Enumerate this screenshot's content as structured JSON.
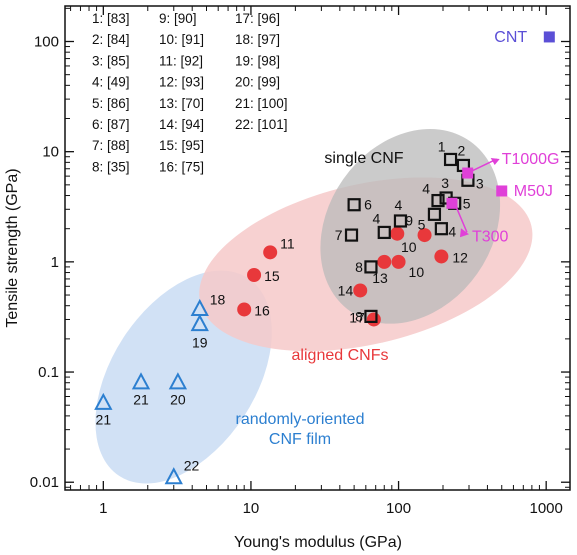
{
  "chart_data": {
    "type": "scatter",
    "title": "",
    "xlabel": "Young's modulus (GPa)",
    "ylabel": "Tensile strength (GPa)",
    "xscale": "log",
    "yscale": "log",
    "xlim": [
      0.55,
      1450
    ],
    "ylim": [
      0.0085,
      210
    ],
    "x_ticks": [
      {
        "value": 1,
        "label": "1"
      },
      {
        "value": 10,
        "label": "10"
      },
      {
        "value": 100,
        "label": "100"
      },
      {
        "value": 1000,
        "label": "1000"
      }
    ],
    "y_ticks": [
      {
        "value": 0.01,
        "label": "0.01"
      },
      {
        "value": 0.1,
        "label": "0.1"
      },
      {
        "value": 1,
        "label": "1"
      },
      {
        "value": 10,
        "label": "10"
      },
      {
        "value": 100,
        "label": "100"
      }
    ],
    "regions": [
      {
        "label": "randomly-oriented\nCNF film",
        "color": "#c9dcf3",
        "text_color": "#2c7fd0"
      },
      {
        "label": "aligned CNFs",
        "color": "#f6c9c9",
        "text_color": "#e8383b"
      },
      {
        "label": "single CNF",
        "color": "#b9b9b9",
        "text_color": "#111111"
      }
    ],
    "references": [
      "1: [83]",
      "2: [84]",
      "3: [85]",
      "4: [49]",
      "5: [86]",
      "6: [87]",
      "7: [88]",
      "8: [35]",
      "9: [90]",
      "10: [91]",
      "11: [92]",
      "12: [93]",
      "13: [70]",
      "14: [94]",
      "15: [95]",
      "16: [75]",
      "17: [96]",
      "18: [97]",
      "19: [98]",
      "20: [99]",
      "21: [100]",
      "22: [101]"
    ],
    "series": [
      {
        "marker": "triangle-open",
        "color": "#2c7fd0",
        "points": [
          {
            "x": 1.0,
            "y": 0.052,
            "label": "21"
          },
          {
            "x": 1.8,
            "y": 0.08,
            "label": "21"
          },
          {
            "x": 3.2,
            "y": 0.08,
            "label": "20"
          },
          {
            "x": 3.0,
            "y": 0.011,
            "label": "22"
          },
          {
            "x": 4.5,
            "y": 0.37,
            "label": "18"
          },
          {
            "x": 4.5,
            "y": 0.27,
            "label": "19"
          }
        ]
      },
      {
        "marker": "circle-filled",
        "color": "#e8383b",
        "points": [
          {
            "x": 9.0,
            "y": 0.37,
            "label": "16"
          },
          {
            "x": 10.5,
            "y": 0.76,
            "label": "15"
          },
          {
            "x": 13.5,
            "y": 1.22,
            "label": "11"
          },
          {
            "x": 55,
            "y": 0.55,
            "label": "14"
          },
          {
            "x": 68,
            "y": 0.3,
            "label": "17"
          },
          {
            "x": 80,
            "y": 1.0,
            "label": "13"
          },
          {
            "x": 100,
            "y": 1.0,
            "label": "10"
          },
          {
            "x": 98,
            "y": 1.8,
            "label": "9"
          },
          {
            "x": 150,
            "y": 1.75,
            "label": "10"
          },
          {
            "x": 195,
            "y": 1.12,
            "label": "12"
          }
        ]
      },
      {
        "marker": "square-open",
        "color": "#111111",
        "points": [
          {
            "x": 50,
            "y": 3.3,
            "label": "6"
          },
          {
            "x": 48,
            "y": 1.75,
            "label": "7"
          },
          {
            "x": 80,
            "y": 1.85,
            "label": "4"
          },
          {
            "x": 103,
            "y": 2.35,
            "label": "4"
          },
          {
            "x": 65,
            "y": 0.9,
            "label": "8"
          },
          {
            "x": 65,
            "y": 0.32,
            "label": "8"
          },
          {
            "x": 175,
            "y": 2.7,
            "label": "5"
          },
          {
            "x": 185,
            "y": 3.6,
            "label": "4"
          },
          {
            "x": 195,
            "y": 2.0,
            "label": "4"
          },
          {
            "x": 210,
            "y": 3.8,
            "label": "3"
          },
          {
            "x": 225,
            "y": 8.5,
            "label": "1"
          },
          {
            "x": 275,
            "y": 7.5,
            "label": "2"
          },
          {
            "x": 295,
            "y": 5.5,
            "label": "3"
          },
          {
            "x": 240,
            "y": 3.4,
            "label": "5"
          }
        ]
      },
      {
        "marker": "square-filled",
        "color": "#e040d8",
        "points": [
          {
            "x": 294,
            "y": 6.4,
            "label": "T1000G"
          },
          {
            "x": 500,
            "y": 4.4,
            "label": "M50J"
          },
          {
            "x": 230,
            "y": 3.4,
            "label": "T300"
          }
        ]
      },
      {
        "marker": "square-filled",
        "color": "#5b4fd6",
        "points": [
          {
            "x": 1050,
            "y": 110,
            "label": "CNT"
          }
        ]
      }
    ]
  }
}
